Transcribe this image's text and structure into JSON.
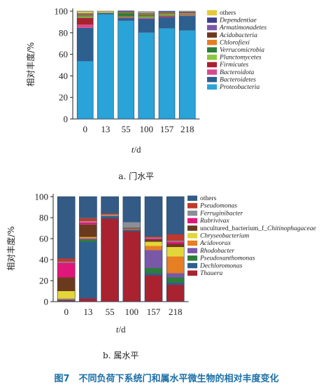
{
  "figure_caption": "图7　不同负荷下系统门和属水平微生物的相对丰度变化",
  "chart_data": [
    {
      "type": "bar",
      "stacked": true,
      "subcaption": "a. 门水平",
      "ylabel": "相对丰度/%",
      "xlabel": "t/d",
      "categories": [
        "0",
        "13",
        "55",
        "100",
        "157",
        "218"
      ],
      "ylim": [
        0,
        100
      ],
      "yticks": [
        0,
        20,
        40,
        60,
        80,
        100
      ],
      "legend_position": "right",
      "series": [
        {
          "name": "Proteobacteria",
          "italic": true,
          "color": "#2aa3d8",
          "values": [
            53.5,
            97,
            91,
            80,
            84,
            82
          ]
        },
        {
          "name": "Bacteroidetes",
          "italic": true,
          "color": "#2d5f8f",
          "values": [
            31,
            1.5,
            2.5,
            13,
            10.5,
            13.5
          ]
        },
        {
          "name": "Bacteroidota",
          "italic": true,
          "color": "#d94a8c",
          "values": [
            3,
            0,
            0.5,
            0.5,
            0.5,
            0.5
          ]
        },
        {
          "name": "Firmicutes",
          "italic": true,
          "color": "#a8232f",
          "values": [
            6.5,
            0,
            0.5,
            0.5,
            1,
            0.5
          ]
        },
        {
          "name": "Planctomycetes",
          "italic": true,
          "color": "#8dc63f",
          "values": [
            1,
            0,
            0.5,
            1,
            1,
            0.5
          ]
        },
        {
          "name": "Verrucomicrobia",
          "italic": true,
          "color": "#2e7d3a",
          "values": [
            1,
            0,
            3.5,
            1.5,
            1,
            0.5
          ]
        },
        {
          "name": "Chlorofiexi",
          "italic": true,
          "color": "#e67e22",
          "values": [
            0.5,
            0,
            0.5,
            0.5,
            0.5,
            0.5
          ]
        },
        {
          "name": "Acidobacteria",
          "italic": true,
          "color": "#6b3a1e",
          "values": [
            0.5,
            0,
            0.5,
            0.5,
            0.5,
            0.5
          ]
        },
        {
          "name": "Armatimonadetes",
          "italic": true,
          "color": "#7a58a8",
          "values": [
            0.5,
            0,
            0.5,
            0.5,
            0.5,
            0.5
          ]
        },
        {
          "name": "Dependentiae",
          "italic": true,
          "color": "#3b3f8c",
          "values": [
            0.5,
            0,
            0.5,
            0.5,
            0.5,
            0.5
          ]
        },
        {
          "name": "others",
          "italic": false,
          "color": "#e3c93a",
          "values": [
            2.0,
            1.5,
            0,
            1.0,
            0,
            0.5
          ]
        }
      ]
    },
    {
      "type": "bar",
      "stacked": true,
      "subcaption": "b. 属水平",
      "ylabel": "相对丰度/%",
      "xlabel": "t/d",
      "categories": [
        "0",
        "13",
        "55",
        "100",
        "157",
        "218"
      ],
      "ylim": [
        0,
        100
      ],
      "yticks": [
        0,
        20,
        40,
        60,
        80,
        100
      ],
      "legend_position": "right",
      "series": [
        {
          "name": "Thauera",
          "italic": true,
          "color": "#a8232f",
          "values": [
            1,
            3,
            79,
            67,
            25,
            16
          ]
        },
        {
          "name": "Dechloromonas",
          "italic": true,
          "color": "#2d5f8f",
          "values": [
            0.5,
            54,
            2,
            1,
            2,
            2
          ]
        },
        {
          "name": "Pseudoxanthomonas",
          "italic": true,
          "color": "#2e7d3a",
          "values": [
            0.5,
            2,
            0.5,
            0.5,
            5,
            5
          ]
        },
        {
          "name": "Rhodobacter",
          "italic": true,
          "color": "#7a58a8",
          "values": [
            0.5,
            1,
            0.5,
            0.5,
            17,
            4
          ]
        },
        {
          "name": "Acidovorax",
          "italic": true,
          "color": "#e67e22",
          "values": [
            0.5,
            1,
            0.5,
            0.5,
            4,
            16
          ]
        },
        {
          "name": "Chryseobacterium",
          "italic": true,
          "color": "#e3d63a",
          "values": [
            7,
            0.5,
            0,
            0,
            4,
            9
          ]
        },
        {
          "name": "uncultured_bacterium_f_Chitinophagaceae",
          "italic": false,
          "italic_part": "Chitinophagaceae",
          "prefix": "uncultured_bacterium_f_",
          "color": "#6b3a1e",
          "values": [
            13,
            12,
            0,
            1,
            2,
            3
          ]
        },
        {
          "name": "Rubrivivax",
          "italic": true,
          "color": "#e0177a",
          "values": [
            14,
            2,
            0,
            0,
            1,
            2
          ]
        },
        {
          "name": "Ferruginibacter",
          "italic": true,
          "color": "#8a8f97",
          "values": [
            1,
            1,
            0.5,
            5,
            1,
            1
          ]
        },
        {
          "name": "Pseudomonas",
          "italic": true,
          "color": "#c0392b",
          "values": [
            3,
            3,
            1,
            0,
            1,
            6
          ]
        },
        {
          "name": "others",
          "italic": false,
          "color": "#345b85",
          "values": [
            59,
            20.5,
            16,
            24.5,
            38,
            36
          ]
        }
      ]
    }
  ]
}
